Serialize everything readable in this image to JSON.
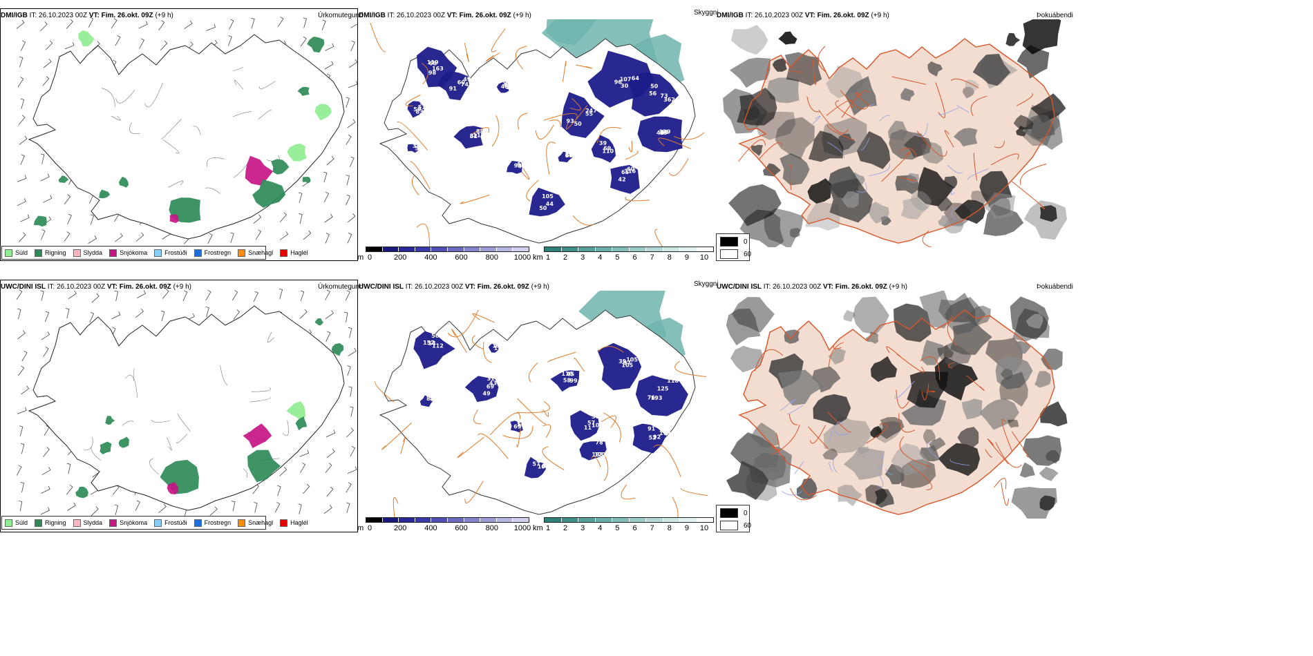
{
  "panels": [
    {
      "model": "DMI/IGB",
      "run": "IT: 26.10.2023 00Z",
      "vt": "VT: Fim. 26.okt. 09Z",
      "lead": "(+9 h)",
      "precip_title": "Úrkomutegund",
      "cloud_title": "Skyggni",
      "fog_title": "Þokuábendi"
    },
    {
      "model": "UWC/DINI ISL",
      "run": "IT: 26.10.2023 00Z",
      "vt": "VT: Fim. 26.okt. 09Z",
      "lead": "(+9 h)",
      "precip_title": "Úrkomutegund",
      "cloud_title": "Skyggni",
      "fog_title": "Þokuábendi"
    }
  ],
  "precip_legend": [
    {
      "label": "Súld",
      "color": "#90ee90"
    },
    {
      "label": "Rigning",
      "color": "#2e8b57"
    },
    {
      "label": "Slydda",
      "color": "#ffb6c1"
    },
    {
      "label": "Snjókoma",
      "color": "#c71585"
    },
    {
      "label": "Frostúði",
      "color": "#87cefa"
    },
    {
      "label": "Frostregn",
      "color": "#1e6fd9"
    },
    {
      "label": "Snæhagl",
      "color": "#ff8c00"
    },
    {
      "label": "Haglél",
      "color": "#e00000"
    }
  ],
  "cloud_base_bar": {
    "unit": "m",
    "ticks": [
      "0",
      "200",
      "400",
      "600",
      "800",
      "1000"
    ]
  },
  "visibility_bar": {
    "unit": "km",
    "ticks": [
      "1",
      "2",
      "3",
      "4",
      "5",
      "6",
      "7",
      "8",
      "9",
      "10"
    ]
  },
  "fog_legend": [
    {
      "label": "0",
      "color": "#000000"
    },
    {
      "label": "60",
      "color": "#ffffff"
    }
  ],
  "labels": {
    "top": [
      "119",
      "91",
      "59",
      "51",
      "52",
      "55",
      "96",
      "73",
      "99",
      "65",
      "69",
      "50",
      "66",
      "43",
      "33",
      "98",
      "60",
      "83",
      "82",
      "96",
      "93",
      "64",
      "56",
      "66",
      "60",
      "110",
      "105",
      "89",
      "98",
      "50",
      "65",
      "49",
      "48",
      "88",
      "87",
      "247",
      "107",
      "50",
      "48",
      "42",
      "39",
      "44",
      "59",
      "40",
      "72",
      "163",
      "74",
      "51",
      "115",
      "48",
      "50",
      "30",
      "362",
      "139",
      "116"
    ],
    "bottom": [
      "112",
      "69",
      "93",
      "99",
      "11",
      "105",
      "76",
      "91",
      "78",
      "80",
      "103",
      "114",
      "157",
      "49",
      "110",
      "110",
      "109",
      "105",
      "125",
      "92",
      "172",
      "101",
      "88",
      "58",
      "54",
      "43",
      "56",
      "45",
      "57",
      "39",
      "193",
      "179",
      "183",
      "57",
      "51",
      "69",
      "50",
      "31",
      "111",
      "58",
      "56",
      "97",
      "118",
      "52"
    ]
  }
}
